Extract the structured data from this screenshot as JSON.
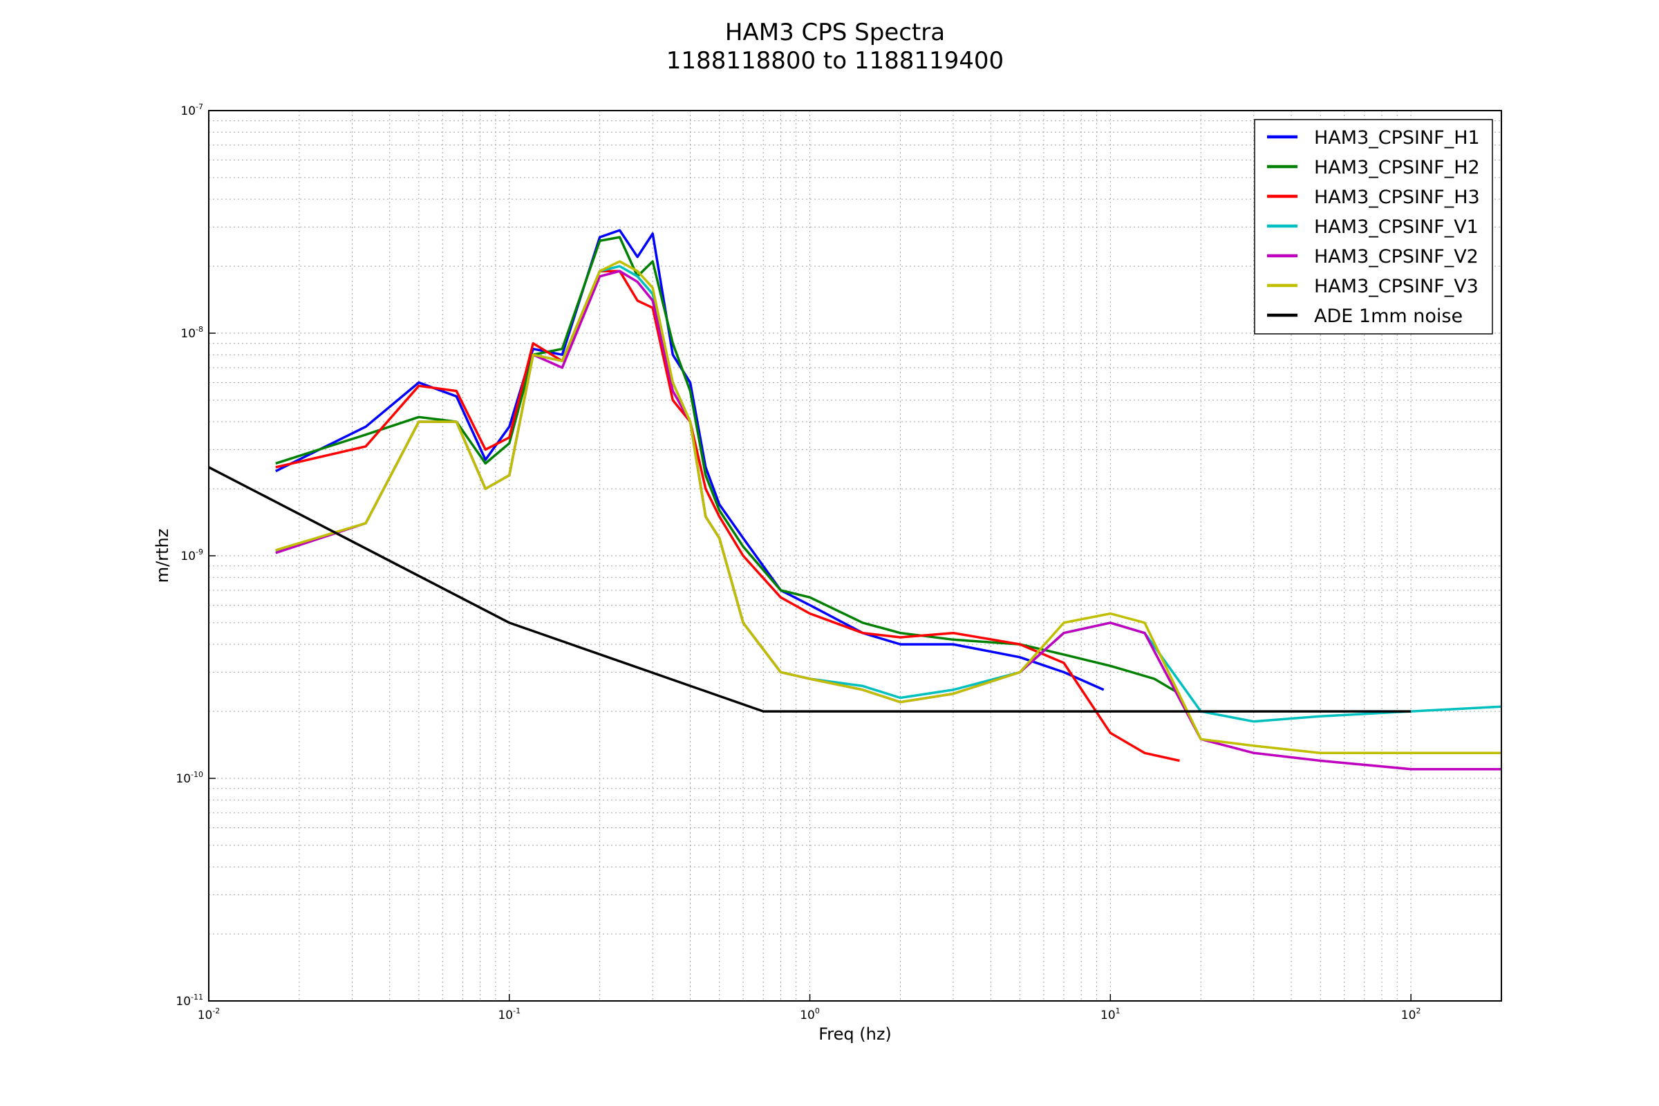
{
  "chart_data": {
    "type": "line",
    "title": "HAM3 CPS Spectra",
    "subtitle": "1188118800 to 1188119400",
    "xlabel": "Freq (hz)",
    "ylabel": "m/rthz",
    "xscale": "log",
    "yscale": "log",
    "xlim": [
      0.01,
      200
    ],
    "ylim": [
      1e-11,
      1e-07
    ],
    "grid": true,
    "legend_position": "top-right",
    "x_ticks": [
      {
        "value": 0.01,
        "base": "10",
        "exp": "-2"
      },
      {
        "value": 0.1,
        "base": "10",
        "exp": "-1"
      },
      {
        "value": 1,
        "base": "10",
        "exp": "0"
      },
      {
        "value": 10,
        "base": "10",
        "exp": "1"
      },
      {
        "value": 100,
        "base": "10",
        "exp": "2"
      }
    ],
    "y_ticks": [
      {
        "value": 1e-11,
        "base": "10",
        "exp": "-11"
      },
      {
        "value": 1e-10,
        "base": "10",
        "exp": "-10"
      },
      {
        "value": 1e-09,
        "base": "10",
        "exp": "-9"
      },
      {
        "value": 1e-08,
        "base": "10",
        "exp": "-8"
      },
      {
        "value": 1e-07,
        "base": "10",
        "exp": "-7"
      }
    ],
    "series": [
      {
        "name": "HAM3_CPSINF_H1",
        "color": "#0000ff",
        "x": [
          0.0167,
          0.0333,
          0.05,
          0.0667,
          0.0833,
          0.1,
          0.12,
          0.15,
          0.2,
          0.233,
          0.267,
          0.3,
          0.35,
          0.4,
          0.45,
          0.5,
          0.6,
          0.8,
          1.0,
          1.5,
          2,
          3,
          5,
          7,
          9.5
        ],
        "y": [
          2.4e-09,
          3.8e-09,
          6e-09,
          5.2e-09,
          2.7e-09,
          3.8e-09,
          8.5e-09,
          8e-09,
          2.7e-08,
          2.9e-08,
          2.2e-08,
          2.8e-08,
          8e-09,
          6e-09,
          2.5e-09,
          1.7e-09,
          1.2e-09,
          7e-10,
          6e-10,
          4.5e-10,
          4e-10,
          4e-10,
          3.5e-10,
          3e-10,
          2.5e-10
        ]
      },
      {
        "name": "HAM3_CPSINF_H2",
        "color": "#008000",
        "x": [
          0.0167,
          0.0333,
          0.05,
          0.0667,
          0.0833,
          0.1,
          0.12,
          0.15,
          0.2,
          0.233,
          0.267,
          0.3,
          0.35,
          0.4,
          0.45,
          0.5,
          0.6,
          0.8,
          1.0,
          1.5,
          2,
          3,
          5,
          7,
          10,
          14,
          17
        ],
        "y": [
          2.6e-09,
          3.5e-09,
          4.2e-09,
          4e-09,
          2.6e-09,
          3.2e-09,
          8e-09,
          8.5e-09,
          2.6e-08,
          2.7e-08,
          1.8e-08,
          2.1e-08,
          9e-09,
          5.5e-09,
          2.3e-09,
          1.6e-09,
          1.1e-09,
          7e-10,
          6.5e-10,
          5e-10,
          4.5e-10,
          4.2e-10,
          4e-10,
          3.6e-10,
          3.2e-10,
          2.8e-10,
          2.4e-10
        ]
      },
      {
        "name": "HAM3_CPSINF_H3",
        "color": "#ff0000",
        "x": [
          0.0167,
          0.0333,
          0.05,
          0.0667,
          0.0833,
          0.1,
          0.12,
          0.15,
          0.2,
          0.233,
          0.267,
          0.3,
          0.35,
          0.4,
          0.45,
          0.5,
          0.6,
          0.8,
          1.0,
          1.5,
          2,
          3,
          5,
          7,
          10,
          13,
          17
        ],
        "y": [
          2.5e-09,
          3.1e-09,
          5.8e-09,
          5.5e-09,
          3e-09,
          3.4e-09,
          9e-09,
          7.5e-09,
          1.9e-08,
          1.9e-08,
          1.4e-08,
          1.3e-08,
          5e-09,
          4e-09,
          2e-09,
          1.5e-09,
          1e-09,
          6.5e-10,
          5.5e-10,
          4.5e-10,
          4.3e-10,
          4.5e-10,
          4e-10,
          3.3e-10,
          1.6e-10,
          1.3e-10,
          1.2e-10
        ]
      },
      {
        "name": "HAM3_CPSINF_V1",
        "color": "#00bfbf",
        "x": [
          0.0167,
          0.0333,
          0.05,
          0.0667,
          0.0833,
          0.1,
          0.12,
          0.15,
          0.2,
          0.233,
          0.267,
          0.3,
          0.35,
          0.4,
          0.45,
          0.5,
          0.6,
          0.8,
          1.0,
          1.5,
          2,
          3,
          5,
          7,
          10,
          13,
          20,
          30,
          50,
          100,
          200
        ],
        "y": [
          1.05e-09,
          1.4e-09,
          4e-09,
          4e-09,
          2e-09,
          2.3e-09,
          8e-09,
          7.5e-09,
          1.9e-08,
          2e-08,
          1.8e-08,
          1.5e-08,
          6e-09,
          4e-09,
          1.5e-09,
          1.2e-09,
          5e-10,
          3e-10,
          2.8e-10,
          2.6e-10,
          2.3e-10,
          2.5e-10,
          3e-10,
          4.5e-10,
          5e-10,
          4.5e-10,
          2e-10,
          1.8e-10,
          1.9e-10,
          2e-10,
          2.1e-10
        ]
      },
      {
        "name": "HAM3_CPSINF_V2",
        "color": "#bf00bf",
        "x": [
          0.0167,
          0.0333,
          0.05,
          0.0667,
          0.0833,
          0.1,
          0.12,
          0.15,
          0.2,
          0.233,
          0.267,
          0.3,
          0.35,
          0.4,
          0.45,
          0.5,
          0.6,
          0.8,
          1.0,
          1.5,
          2,
          3,
          5,
          7,
          10,
          13,
          20,
          30,
          50,
          100,
          200
        ],
        "y": [
          1.03e-09,
          1.4e-09,
          4e-09,
          4e-09,
          2e-09,
          2.3e-09,
          8e-09,
          7e-09,
          1.8e-08,
          1.9e-08,
          1.7e-08,
          1.4e-08,
          5.5e-09,
          4e-09,
          1.5e-09,
          1.2e-09,
          5e-10,
          3e-10,
          2.8e-10,
          2.5e-10,
          2.2e-10,
          2.4e-10,
          3e-10,
          4.5e-10,
          5e-10,
          4.5e-10,
          1.5e-10,
          1.3e-10,
          1.2e-10,
          1.1e-10,
          1.1e-10
        ]
      },
      {
        "name": "HAM3_CPSINF_V3",
        "color": "#bfbf00",
        "x": [
          0.0167,
          0.0333,
          0.05,
          0.0667,
          0.0833,
          0.1,
          0.12,
          0.15,
          0.2,
          0.233,
          0.267,
          0.3,
          0.35,
          0.4,
          0.45,
          0.5,
          0.6,
          0.8,
          1.0,
          1.5,
          2,
          3,
          5,
          7,
          10,
          13,
          20,
          30,
          50,
          100,
          200
        ],
        "y": [
          1.06e-09,
          1.4e-09,
          4e-09,
          4e-09,
          2e-09,
          2.3e-09,
          8e-09,
          7.5e-09,
          1.9e-08,
          2.1e-08,
          1.9e-08,
          1.6e-08,
          6e-09,
          4e-09,
          1.5e-09,
          1.2e-09,
          5e-10,
          3e-10,
          2.8e-10,
          2.5e-10,
          2.2e-10,
          2.4e-10,
          3e-10,
          5e-10,
          5.5e-10,
          5e-10,
          1.5e-10,
          1.4e-10,
          1.3e-10,
          1.3e-10,
          1.3e-10
        ]
      },
      {
        "name": "ADE 1mm noise",
        "color": "#000000",
        "x": [
          0.01,
          0.1,
          0.7,
          100
        ],
        "y": [
          2.5e-09,
          5e-10,
          2e-10,
          2e-10
        ]
      }
    ]
  }
}
